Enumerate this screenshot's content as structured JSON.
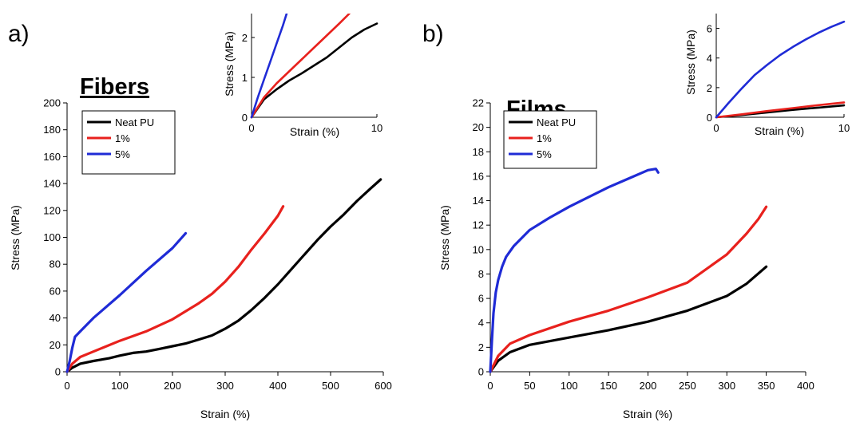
{
  "colors": {
    "neat": "#000000",
    "one": "#e8211d",
    "five": "#1f2bd6"
  },
  "chart_data": [
    {
      "id": "a",
      "type": "line",
      "panel_label": "a)",
      "heading": "Fibers",
      "xlabel": "Strain (%)",
      "ylabel": "Stress (MPa)",
      "xlim": [
        0,
        600
      ],
      "ylim": [
        0,
        200
      ],
      "xticks": [
        0,
        100,
        200,
        300,
        400,
        500,
        600
      ],
      "yticks": [
        0,
        20,
        40,
        60,
        80,
        100,
        120,
        140,
        160,
        180,
        200
      ],
      "legend": {
        "position": "upper-left",
        "entries": [
          "Neat PU",
          "1%",
          "5%"
        ]
      },
      "series": [
        {
          "name": "Neat PU",
          "color_key": "neat",
          "x": [
            0,
            10,
            25,
            50,
            80,
            100,
            125,
            150,
            175,
            200,
            225,
            250,
            275,
            300,
            325,
            350,
            375,
            400,
            425,
            450,
            475,
            500,
            525,
            550,
            575,
            595
          ],
          "y": [
            0,
            3,
            6,
            8,
            10,
            12,
            14,
            15,
            17,
            19,
            21,
            24,
            27,
            32,
            38,
            46,
            55,
            65,
            76,
            87,
            98,
            108,
            117,
            127,
            136,
            143
          ]
        },
        {
          "name": "1%",
          "color_key": "one",
          "x": [
            0,
            10,
            25,
            50,
            100,
            150,
            200,
            250,
            275,
            300,
            325,
            350,
            375,
            400,
            410
          ],
          "y": [
            0,
            6,
            11,
            15,
            23,
            30,
            39,
            51,
            58,
            67,
            78,
            91,
            103,
            116,
            123
          ]
        },
        {
          "name": "5%",
          "color_key": "five",
          "x": [
            0,
            5,
            10,
            15,
            25,
            50,
            100,
            150,
            200,
            225
          ],
          "y": [
            0,
            8,
            18,
            26,
            30,
            40,
            57,
            75,
            92,
            103
          ]
        }
      ],
      "inset": {
        "xlabel": "Strain (%)",
        "ylabel": "Stress (MPa)",
        "xlim": [
          0,
          10
        ],
        "ylim": [
          0,
          2.6
        ],
        "xticks": [
          0,
          10
        ],
        "yticks": [
          0,
          1,
          2
        ],
        "series": [
          {
            "name": "Neat PU",
            "color_key": "neat",
            "x": [
              0,
              1,
              2,
              3,
              4,
              5,
              6,
              7,
              8,
              9,
              10
            ],
            "y": [
              0,
              0.45,
              0.7,
              0.92,
              1.1,
              1.3,
              1.5,
              1.75,
              2.0,
              2.2,
              2.35
            ]
          },
          {
            "name": "1%",
            "color_key": "one",
            "x": [
              0,
              1,
              2,
              3,
              4,
              5,
              6,
              7,
              7.8
            ],
            "y": [
              0,
              0.5,
              0.85,
              1.15,
              1.45,
              1.75,
              2.05,
              2.35,
              2.6
            ]
          },
          {
            "name": "5%",
            "color_key": "five",
            "x": [
              0,
              0.5,
              1,
              1.5,
              2,
              2.5,
              2.8
            ],
            "y": [
              0,
              0.5,
              0.95,
              1.4,
              1.85,
              2.3,
              2.6
            ]
          }
        ]
      }
    },
    {
      "id": "b",
      "type": "line",
      "panel_label": "b)",
      "heading": "Films",
      "xlabel": "Strain (%)",
      "ylabel": "Stress (MPa)",
      "xlim": [
        0,
        400
      ],
      "ylim": [
        0,
        22
      ],
      "xticks": [
        0,
        50,
        100,
        150,
        200,
        250,
        300,
        350,
        400
      ],
      "yticks": [
        0,
        2,
        4,
        6,
        8,
        10,
        12,
        14,
        16,
        18,
        20,
        22
      ],
      "legend": {
        "position": "upper-left",
        "entries": [
          "Neat PU",
          "1%",
          "5%"
        ]
      },
      "series": [
        {
          "name": "Neat PU",
          "color_key": "neat",
          "x": [
            0,
            10,
            25,
            50,
            100,
            150,
            200,
            250,
            300,
            325,
            350
          ],
          "y": [
            0,
            0.9,
            1.6,
            2.2,
            2.8,
            3.4,
            4.1,
            5.0,
            6.2,
            7.2,
            8.6
          ]
        },
        {
          "name": "1%",
          "color_key": "one",
          "x": [
            0,
            10,
            25,
            50,
            100,
            150,
            200,
            250,
            300,
            325,
            340,
            350
          ],
          "y": [
            0,
            1.3,
            2.3,
            3.0,
            4.1,
            5.0,
            6.1,
            7.3,
            9.6,
            11.3,
            12.5,
            13.5
          ]
        },
        {
          "name": "5%",
          "color_key": "five",
          "x": [
            0,
            2,
            4,
            7,
            10,
            15,
            20,
            30,
            50,
            75,
            100,
            125,
            150,
            175,
            200,
            210,
            213
          ],
          "y": [
            0,
            2.5,
            4.8,
            6.5,
            7.5,
            8.6,
            9.4,
            10.3,
            11.6,
            12.6,
            13.5,
            14.3,
            15.1,
            15.8,
            16.5,
            16.6,
            16.3
          ]
        }
      ],
      "inset": {
        "xlabel": "Strain (%)",
        "ylabel": "Stress (MPa)",
        "xlim": [
          0,
          10
        ],
        "ylim": [
          0,
          7
        ],
        "xticks": [
          0,
          10
        ],
        "yticks": [
          0,
          2,
          4,
          6
        ],
        "series": [
          {
            "name": "Neat PU",
            "color_key": "neat",
            "x": [
              0,
              2,
              4,
              6,
              8,
              10
            ],
            "y": [
              0,
              0.15,
              0.33,
              0.5,
              0.65,
              0.8
            ]
          },
          {
            "name": "1%",
            "color_key": "one",
            "x": [
              0,
              2,
              4,
              6,
              8,
              10
            ],
            "y": [
              0,
              0.2,
              0.42,
              0.62,
              0.82,
              1.0
            ]
          },
          {
            "name": "5%",
            "color_key": "five",
            "x": [
              0,
              1,
              2,
              3,
              4,
              5,
              6,
              7,
              8,
              9,
              10
            ],
            "y": [
              0,
              1.0,
              1.95,
              2.85,
              3.55,
              4.2,
              4.75,
              5.25,
              5.7,
              6.1,
              6.45
            ]
          }
        ]
      }
    }
  ]
}
